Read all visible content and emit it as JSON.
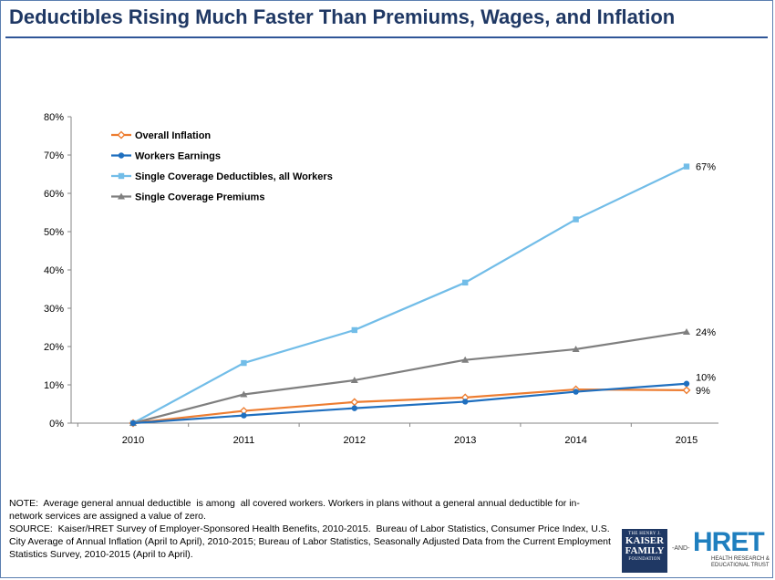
{
  "title": "Deductibles Rising Much Faster Than Premiums, Wages, and Inflation",
  "notes": {
    "note": "NOTE:  Average general annual deductible  is among  all covered workers. Workers in plans without a general annual deductible for in-network services are assigned a value of zero.",
    "source": "SOURCE:  Kaiser/HRET Survey of Employer-Sponsored Health Benefits, 2010-2015.  Bureau of Labor Statistics, Consumer Price Index, U.S. City Average of Annual Inflation (April to April), 2010-2015; Bureau of Labor Statistics, Seasonally Adjusted Data from the Current Employment Statistics Survey, 2010-2015 (April to April)."
  },
  "logos": {
    "kff_line1": "THE HENRY J.",
    "kff_line2": "KAISER",
    "kff_line3": "FAMILY",
    "kff_line4": "FOUNDATION",
    "and": "-AND-",
    "hret_word": "HRET",
    "hret_line1": "HEALTH RESEARCH &",
    "hret_line2": "EDUCATIONAL TRUST"
  },
  "chart_data": {
    "type": "line",
    "title": "Deductibles Rising Much Faster Than Premiums, Wages, and Inflation",
    "xlabel": "",
    "ylabel": "",
    "categories": [
      "2010",
      "2011",
      "2012",
      "2013",
      "2014",
      "2015"
    ],
    "ylim": [
      0,
      80
    ],
    "yticks": [
      0,
      10,
      20,
      30,
      40,
      50,
      60,
      70,
      80
    ],
    "ytick_suffix": "%",
    "grid": false,
    "legend_position": "top-left",
    "series": [
      {
        "name": "Overall Inflation",
        "color": "#ed7d31",
        "marker": "diamond-open",
        "values": [
          0,
          3.2,
          5.5,
          6.7,
          8.8,
          8.6
        ],
        "end_label": "9%"
      },
      {
        "name": "Workers Earnings",
        "color": "#1f6fbf",
        "marker": "circle",
        "values": [
          0,
          2.0,
          3.9,
          5.6,
          8.2,
          10.3
        ],
        "end_label": "10%"
      },
      {
        "name": "Single Coverage Deductibles, all Workers",
        "color": "#72bde8",
        "marker": "square",
        "values": [
          0,
          15.7,
          24.3,
          36.7,
          53.2,
          67.0
        ],
        "end_label": "67%"
      },
      {
        "name": "Single Coverage Premiums",
        "color": "#7f7f7f",
        "marker": "triangle",
        "values": [
          0,
          7.5,
          11.2,
          16.5,
          19.3,
          23.8
        ],
        "end_label": "24%"
      }
    ]
  }
}
